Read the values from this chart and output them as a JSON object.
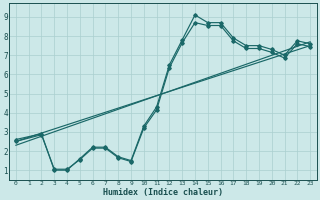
{
  "xlabel": "Humidex (Indice chaleur)",
  "xlim": [
    -0.5,
    23.5
  ],
  "ylim": [
    0.5,
    9.7
  ],
  "xticks": [
    0,
    1,
    2,
    3,
    4,
    5,
    6,
    7,
    8,
    9,
    10,
    11,
    12,
    13,
    14,
    15,
    16,
    17,
    18,
    19,
    20,
    21,
    22,
    23
  ],
  "yticks": [
    1,
    2,
    3,
    4,
    5,
    6,
    7,
    8,
    9
  ],
  "bg_color": "#cce8e8",
  "grid_color": "#aacfcf",
  "line_color": "#1a6868",
  "line1_x": [
    0,
    2,
    3,
    4,
    5,
    6,
    7,
    8,
    9,
    10,
    11,
    12,
    13,
    14,
    15,
    16,
    17,
    18,
    19,
    20,
    21,
    22,
    23
  ],
  "line1_y": [
    2.6,
    2.9,
    1.0,
    1.0,
    1.6,
    2.2,
    2.2,
    1.7,
    1.5,
    3.3,
    4.3,
    6.5,
    7.8,
    9.1,
    8.7,
    8.7,
    7.9,
    7.5,
    7.5,
    7.3,
    7.0,
    7.75,
    7.6
  ],
  "line2_x": [
    0,
    2,
    3,
    4,
    5,
    6,
    7,
    8,
    9,
    10,
    11,
    12,
    13,
    14,
    15,
    16,
    17,
    18,
    19,
    20,
    21,
    22,
    23
  ],
  "line2_y": [
    2.5,
    2.85,
    1.05,
    1.05,
    1.55,
    2.15,
    2.15,
    1.65,
    1.45,
    3.2,
    4.15,
    6.35,
    7.65,
    8.7,
    8.55,
    8.55,
    7.75,
    7.35,
    7.35,
    7.15,
    6.85,
    7.6,
    7.45
  ],
  "regline1_x": [
    0,
    23
  ],
  "regline1_y": [
    2.5,
    7.5
  ],
  "regline2_x": [
    0,
    23
  ],
  "regline2_y": [
    2.3,
    7.7
  ]
}
